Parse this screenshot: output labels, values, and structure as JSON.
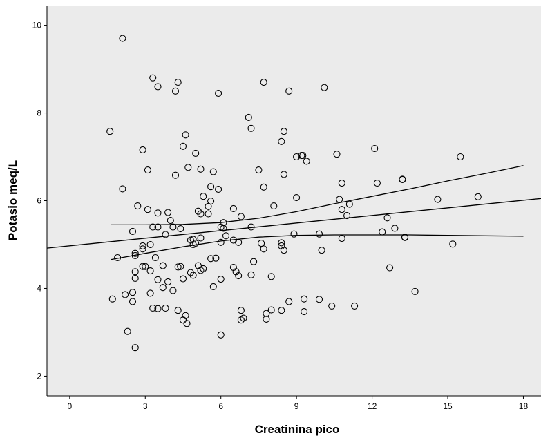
{
  "chart_data": {
    "type": "scatter",
    "title": "",
    "xlabel": "Creatinina pico",
    "ylabel": "Potasio meq/L",
    "xlim": [
      -0.9,
      18.7
    ],
    "ylim": [
      1.55,
      10.45
    ],
    "xticks": [
      0,
      3,
      6,
      9,
      12,
      15,
      18
    ],
    "yticks": [
      2,
      4,
      6,
      8,
      10
    ],
    "grid": false,
    "plot_background": "#ebebeb",
    "marker_color": "#000000",
    "marker": "open-circle",
    "points": [
      [
        2.1,
        9.7
      ],
      [
        3.3,
        8.8
      ],
      [
        3.5,
        8.6
      ],
      [
        4.2,
        8.5
      ],
      [
        4.3,
        8.7
      ],
      [
        5.9,
        8.45
      ],
      [
        7.7,
        8.7
      ],
      [
        8.7,
        8.5
      ],
      [
        10.1,
        8.58
      ],
      [
        1.6,
        7.58
      ],
      [
        7.1,
        7.9
      ],
      [
        7.2,
        7.65
      ],
      [
        8.5,
        7.58
      ],
      [
        8.4,
        7.35
      ],
      [
        4.6,
        7.5
      ],
      [
        4.5,
        7.24
      ],
      [
        5.0,
        7.08
      ],
      [
        2.9,
        7.16
      ],
      [
        9.2,
        7.03
      ],
      [
        9.25,
        7.03
      ],
      [
        9.0,
        7.0
      ],
      [
        9.4,
        6.9
      ],
      [
        10.6,
        7.06
      ],
      [
        12.1,
        7.19
      ],
      [
        15.5,
        7.0
      ],
      [
        3.1,
        6.7
      ],
      [
        4.7,
        6.76
      ],
      [
        5.2,
        6.72
      ],
      [
        5.6,
        6.32
      ],
      [
        5.7,
        6.66
      ],
      [
        7.5,
        6.7
      ],
      [
        7.7,
        6.31
      ],
      [
        8.5,
        6.6
      ],
      [
        4.2,
        6.58
      ],
      [
        2.1,
        6.27
      ],
      [
        10.8,
        6.4
      ],
      [
        12.2,
        6.4
      ],
      [
        13.2,
        6.49
      ],
      [
        13.2,
        6.48
      ],
      [
        5.3,
        6.1
      ],
      [
        5.6,
        5.99
      ],
      [
        5.9,
        6.26
      ],
      [
        9.0,
        6.07
      ],
      [
        10.7,
        6.03
      ],
      [
        10.8,
        5.8
      ],
      [
        11.1,
        5.92
      ],
      [
        11.0,
        5.66
      ],
      [
        14.6,
        6.03
      ],
      [
        16.2,
        6.09
      ],
      [
        2.7,
        5.88
      ],
      [
        3.1,
        5.8
      ],
      [
        3.5,
        5.72
      ],
      [
        3.9,
        5.73
      ],
      [
        4.0,
        5.55
      ],
      [
        5.1,
        5.76
      ],
      [
        5.2,
        5.7
      ],
      [
        5.5,
        5.87
      ],
      [
        5.5,
        5.7
      ],
      [
        6.5,
        5.82
      ],
      [
        6.8,
        5.64
      ],
      [
        8.1,
        5.88
      ],
      [
        12.6,
        5.61
      ],
      [
        2.5,
        5.3
      ],
      [
        3.3,
        5.4
      ],
      [
        3.5,
        5.4
      ],
      [
        3.8,
        5.23
      ],
      [
        4.1,
        5.4
      ],
      [
        4.4,
        5.36
      ],
      [
        6.0,
        5.4
      ],
      [
        6.1,
        5.5
      ],
      [
        6.1,
        5.37
      ],
      [
        6.2,
        5.2
      ],
      [
        7.2,
        5.4
      ],
      [
        12.4,
        5.29
      ],
      [
        12.9,
        5.37
      ],
      [
        13.3,
        5.17
      ],
      [
        13.3,
        5.16
      ],
      [
        3.2,
        5.0
      ],
      [
        2.9,
        4.97
      ],
      [
        4.8,
        5.1
      ],
      [
        4.9,
        5.12
      ],
      [
        4.9,
        5.0
      ],
      [
        5.0,
        5.03
      ],
      [
        5.2,
        5.15
      ],
      [
        6.0,
        5.05
      ],
      [
        6.5,
        5.1
      ],
      [
        6.7,
        5.05
      ],
      [
        7.6,
        5.03
      ],
      [
        8.4,
        5.04
      ],
      [
        8.4,
        4.97
      ],
      [
        8.9,
        5.24
      ],
      [
        9.9,
        5.24
      ],
      [
        10.8,
        5.14
      ],
      [
        15.2,
        5.01
      ],
      [
        10.0,
        4.87
      ],
      [
        8.5,
        4.87
      ],
      [
        7.7,
        4.9
      ],
      [
        1.9,
        4.7
      ],
      [
        2.6,
        4.8
      ],
      [
        2.6,
        4.75
      ],
      [
        2.9,
        4.9
      ],
      [
        3.4,
        4.7
      ],
      [
        5.6,
        4.68
      ],
      [
        5.8,
        4.69
      ],
      [
        2.9,
        4.5
      ],
      [
        3.0,
        4.5
      ],
      [
        3.2,
        4.4
      ],
      [
        2.6,
        4.38
      ],
      [
        3.7,
        4.52
      ],
      [
        4.3,
        4.49
      ],
      [
        4.4,
        4.5
      ],
      [
        4.8,
        4.36
      ],
      [
        4.9,
        4.3
      ],
      [
        5.1,
        4.52
      ],
      [
        5.3,
        4.45
      ],
      [
        5.2,
        4.41
      ],
      [
        6.5,
        4.48
      ],
      [
        6.6,
        4.38
      ],
      [
        6.7,
        4.29
      ],
      [
        7.2,
        4.31
      ],
      [
        7.3,
        4.61
      ],
      [
        8.0,
        4.27
      ],
      [
        12.7,
        4.47
      ],
      [
        2.6,
        4.23
      ],
      [
        3.5,
        4.2
      ],
      [
        3.9,
        4.15
      ],
      [
        3.7,
        4.02
      ],
      [
        4.5,
        4.22
      ],
      [
        4.1,
        3.95
      ],
      [
        5.7,
        4.04
      ],
      [
        6.0,
        4.21
      ],
      [
        1.7,
        3.76
      ],
      [
        2.2,
        3.86
      ],
      [
        2.5,
        3.91
      ],
      [
        3.2,
        3.89
      ],
      [
        2.5,
        3.7
      ],
      [
        3.3,
        3.55
      ],
      [
        3.5,
        3.54
      ],
      [
        3.8,
        3.55
      ],
      [
        4.3,
        3.5
      ],
      [
        4.6,
        3.38
      ],
      [
        4.5,
        3.28
      ],
      [
        4.65,
        3.2
      ],
      [
        6.8,
        3.5
      ],
      [
        6.8,
        3.28
      ],
      [
        6.9,
        3.32
      ],
      [
        7.8,
        3.43
      ],
      [
        7.8,
        3.3
      ],
      [
        8.0,
        3.51
      ],
      [
        8.4,
        3.5
      ],
      [
        8.7,
        3.7
      ],
      [
        9.3,
        3.76
      ],
      [
        9.3,
        3.47
      ],
      [
        9.9,
        3.75
      ],
      [
        10.4,
        3.6
      ],
      [
        11.3,
        3.6
      ],
      [
        13.7,
        3.93
      ],
      [
        2.3,
        3.02
      ],
      [
        6.0,
        2.94
      ],
      [
        2.6,
        2.65
      ]
    ],
    "fit_line": {
      "x": [
        -0.9,
        18.7
      ],
      "y": [
        4.92,
        6.05
      ]
    },
    "ci_upper": {
      "x": [
        1.65,
        3.0,
        4.5,
        6.0,
        7.5,
        9.0,
        10.5,
        12.0,
        13.5,
        15.0,
        16.5,
        18.0
      ],
      "y": [
        5.45,
        5.45,
        5.46,
        5.5,
        5.6,
        5.75,
        5.93,
        6.1,
        6.27,
        6.45,
        6.62,
        6.8
      ]
    },
    "ci_lower": {
      "x": [
        1.65,
        3.0,
        4.5,
        6.0,
        7.5,
        9.0,
        10.5,
        12.0,
        13.5,
        15.0,
        16.5,
        18.0
      ],
      "y": [
        4.66,
        4.8,
        4.95,
        5.08,
        5.17,
        5.21,
        5.22,
        5.22,
        5.22,
        5.21,
        5.2,
        5.19
      ]
    }
  }
}
